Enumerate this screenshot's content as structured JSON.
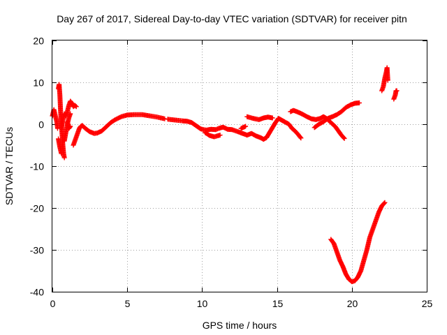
{
  "chart_data": {
    "type": "scatter",
    "title": "Day 267 of 2017, Sidereal Day-to-day VTEC variation (SDTVAR) for receiver pitn",
    "xlabel": "GPS time / hours",
    "ylabel": "SDTVAR / TECUs",
    "xlim": [
      0,
      25
    ],
    "ylim": [
      -40,
      20
    ],
    "xticks": [
      0,
      5,
      10,
      15,
      20,
      25
    ],
    "yticks": [
      -40,
      -30,
      -20,
      -10,
      0,
      10,
      20
    ],
    "xtick_labels": [
      "0",
      "5",
      "10",
      "15",
      "20",
      "25"
    ],
    "ytick_labels": [
      "-40",
      "-30",
      "-20",
      "-10",
      "0",
      "10",
      "20"
    ],
    "grid": true,
    "marker": "plus",
    "color": "#ff0000",
    "series": [
      {
        "name": "SDTVAR",
        "segments": [
          [
            [
              0.0,
              2.0
            ],
            [
              0.1,
              3.5
            ],
            [
              0.2,
              2.0
            ],
            [
              0.3,
              0.5
            ],
            [
              0.35,
              -1.0
            ]
          ],
          [
            [
              0.4,
              8.5
            ],
            [
              0.45,
              9.5
            ],
            [
              0.5,
              7.0
            ],
            [
              0.55,
              3.0
            ],
            [
              0.6,
              0.0
            ],
            [
              0.65,
              -2.5
            ],
            [
              0.7,
              -5.0
            ],
            [
              0.75,
              -7.0
            ],
            [
              0.8,
              -8.0
            ]
          ],
          [
            [
              0.4,
              -3.5
            ],
            [
              0.5,
              -5.5
            ],
            [
              0.6,
              -7.0
            ]
          ],
          [
            [
              0.6,
              -1.0
            ],
            [
              0.7,
              1.0
            ],
            [
              0.8,
              2.5
            ],
            [
              0.9,
              2.0
            ],
            [
              1.0,
              3.0
            ],
            [
              1.1,
              4.5
            ],
            [
              1.2,
              5.5
            ],
            [
              1.3,
              5.0
            ],
            [
              1.4,
              4.2
            ],
            [
              1.5,
              4.5
            ],
            [
              1.6,
              4.2
            ]
          ],
          [
            [
              0.8,
              -4.0
            ],
            [
              0.9,
              -2.0
            ],
            [
              1.0,
              0.0
            ],
            [
              1.1,
              1.5
            ],
            [
              1.2,
              2.5
            ]
          ],
          [
            [
              1.0,
              0.5
            ],
            [
              1.1,
              -1.0
            ],
            [
              1.2,
              -0.5
            ]
          ],
          [
            [
              1.4,
              -5.0
            ],
            [
              1.5,
              -4.0
            ],
            [
              1.6,
              -3.0
            ],
            [
              1.7,
              -2.0
            ],
            [
              1.8,
              -1.0
            ],
            [
              1.9,
              -0.5
            ],
            [
              2.0,
              -0.3
            ],
            [
              2.2,
              -1.0
            ],
            [
              2.5,
              -1.8
            ],
            [
              2.8,
              -2.2
            ],
            [
              3.0,
              -2.1
            ],
            [
              3.3,
              -1.6
            ],
            [
              3.6,
              -0.6
            ],
            [
              3.9,
              0.4
            ],
            [
              4.2,
              1.1
            ],
            [
              4.6,
              1.8
            ],
            [
              5.0,
              2.2
            ],
            [
              5.5,
              2.3
            ],
            [
              6.0,
              2.3
            ],
            [
              6.5,
              2.0
            ],
            [
              7.0,
              1.7
            ],
            [
              7.5,
              1.3
            ]
          ],
          [
            [
              7.7,
              1.2
            ],
            [
              8.2,
              1.0
            ],
            [
              8.7,
              0.8
            ],
            [
              9.0,
              0.7
            ],
            [
              9.3,
              0.4
            ],
            [
              9.5,
              -0.1
            ],
            [
              9.7,
              -0.6
            ],
            [
              9.9,
              -1.1
            ],
            [
              10.1,
              -1.3
            ],
            [
              10.3,
              -1.4
            ],
            [
              10.6,
              -1.2
            ],
            [
              10.9,
              -1.3
            ],
            [
              11.1,
              -1.0
            ],
            [
              11.4,
              -0.7
            ],
            [
              11.7,
              -1.2
            ],
            [
              12.0,
              -1.3
            ],
            [
              12.4,
              -1.8
            ],
            [
              12.7,
              -2.2
            ],
            [
              13.0,
              -2.6
            ],
            [
              13.3,
              -2.2
            ],
            [
              13.6,
              -2.8
            ],
            [
              13.9,
              -3.2
            ],
            [
              14.1,
              -3.6
            ],
            [
              14.3,
              -3.2
            ],
            [
              14.5,
              -2.0
            ],
            [
              14.7,
              -0.8
            ],
            [
              14.9,
              0.4
            ],
            [
              15.1,
              1.4
            ],
            [
              15.3,
              1.0
            ],
            [
              15.5,
              0.6
            ],
            [
              15.8,
              0.0
            ],
            [
              16.0,
              -1.0
            ],
            [
              16.2,
              -1.6
            ],
            [
              16.4,
              -2.4
            ],
            [
              16.6,
              -3.3
            ]
          ],
          [
            [
              10.2,
              -2.0
            ],
            [
              10.5,
              -2.7
            ],
            [
              10.8,
              -3.0
            ],
            [
              11.0,
              -2.8
            ],
            [
              11.2,
              -2.6
            ]
          ],
          [
            [
              12.6,
              -1.0
            ],
            [
              12.9,
              -0.5
            ]
          ],
          [
            [
              13.0,
              1.8
            ],
            [
              13.4,
              1.4
            ],
            [
              13.8,
              1.1
            ],
            [
              14.1,
              1.5
            ],
            [
              14.4,
              1.7
            ],
            [
              14.7,
              1.5
            ]
          ],
          [
            [
              15.9,
              3.0
            ],
            [
              16.1,
              3.3
            ],
            [
              16.4,
              2.9
            ],
            [
              16.7,
              2.4
            ],
            [
              17.0,
              1.8
            ],
            [
              17.3,
              1.3
            ],
            [
              17.6,
              1.1
            ],
            [
              17.9,
              1.4
            ],
            [
              18.1,
              1.8
            ],
            [
              18.3,
              1.4
            ],
            [
              18.6,
              0.4
            ],
            [
              18.9,
              -0.6
            ],
            [
              19.1,
              -1.6
            ],
            [
              19.3,
              -2.6
            ],
            [
              19.5,
              -3.4
            ]
          ],
          [
            [
              17.5,
              -0.8
            ],
            [
              17.8,
              0.0
            ],
            [
              18.1,
              0.6
            ],
            [
              18.4,
              1.4
            ],
            [
              18.7,
              1.8
            ],
            [
              19.0,
              2.3
            ],
            [
              19.3,
              3.0
            ],
            [
              19.6,
              4.0
            ],
            [
              19.9,
              4.6
            ],
            [
              20.2,
              5.0
            ],
            [
              20.5,
              5.1
            ]
          ],
          [
            [
              18.6,
              -27.5
            ],
            [
              18.8,
              -28.5
            ],
            [
              19.0,
              -30.5
            ],
            [
              19.2,
              -32.5
            ],
            [
              19.4,
              -34.0
            ],
            [
              19.6,
              -35.8
            ],
            [
              19.8,
              -37.0
            ],
            [
              20.0,
              -37.6
            ],
            [
              20.2,
              -37.4
            ],
            [
              20.4,
              -36.5
            ],
            [
              20.6,
              -35.0
            ],
            [
              20.8,
              -32.5
            ],
            [
              21.0,
              -30.0
            ],
            [
              21.2,
              -27.0
            ],
            [
              21.4,
              -25.0
            ],
            [
              21.6,
              -23.0
            ],
            [
              21.8,
              -21.0
            ],
            [
              22.0,
              -19.5
            ],
            [
              22.2,
              -18.7
            ]
          ],
          [
            [
              22.0,
              8.0
            ],
            [
              22.1,
              9.0
            ],
            [
              22.2,
              11.0
            ],
            [
              22.3,
              12.5
            ],
            [
              22.35,
              13.5
            ],
            [
              22.4,
              10.5
            ]
          ],
          [
            [
              22.8,
              6.0
            ],
            [
              22.9,
              7.0
            ],
            [
              22.95,
              8.0
            ],
            [
              23.0,
              8.0
            ]
          ]
        ]
      }
    ]
  }
}
